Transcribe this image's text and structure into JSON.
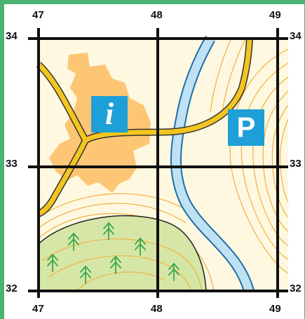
{
  "map": {
    "grid": {
      "x_labels_top": [
        "47",
        "48",
        "49"
      ],
      "x_labels_bottom": [
        "47",
        "48",
        "49"
      ],
      "y_labels_left": [
        "34",
        "33",
        "32"
      ],
      "y_labels_right": [
        "34",
        "33",
        "32"
      ]
    },
    "symbols": {
      "info": {
        "glyph": "i",
        "icon": "information-icon",
        "color": "#1e9fd8"
      },
      "parking": {
        "glyph": "P",
        "icon": "parking-icon",
        "color": "#1e9fd8"
      }
    },
    "colors": {
      "land": "#fff8e1",
      "built_up": "#fcc674",
      "road": "#f3c51f",
      "river": "#bfe1f4",
      "forest": "#d6e6a6",
      "contour": "#f0b040",
      "grid": "#111111",
      "tree": "#3aa84d"
    }
  }
}
